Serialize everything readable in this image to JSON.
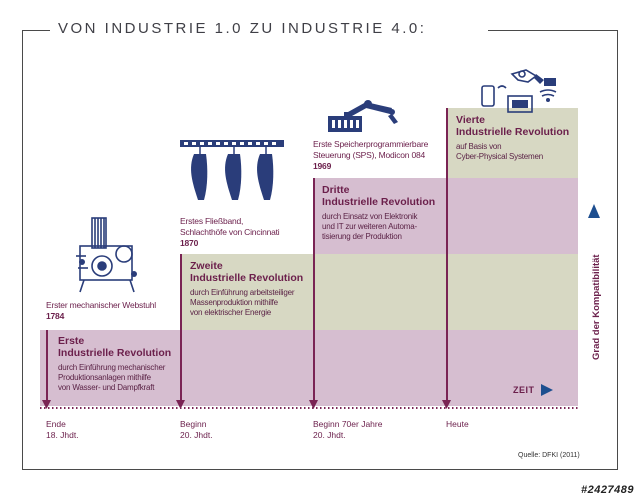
{
  "title": "VON INDUSTRIE 1.0 ZU INDUSTRIE 4.0:",
  "revolutions": [
    {
      "title_line1": "Erste",
      "title_line2": "Industrielle Revolution",
      "desc": [
        "durch Einführung mechanischer",
        "Produktionsanlagen mithilfe",
        "von Wasser- und Dampfkraft"
      ],
      "milestone": [
        "Erster mechanischer Webstuhl"
      ],
      "year": "1784",
      "tick": [
        "Ende",
        "18. Jhdt."
      ],
      "icon": "loom-icon"
    },
    {
      "title_line1": "Zweite",
      "title_line2": "Industrielle Revolution",
      "desc": [
        "durch Einführung arbeitsteiliger",
        "Massenproduktion mithilfe",
        "von elektrischer Energie"
      ],
      "milestone": [
        "Erstes Fließband,",
        "Schlachthöfe von Cincinnati"
      ],
      "year": "1870",
      "tick": [
        "Beginn",
        "20. Jhdt."
      ],
      "icon": "assembly-line-icon"
    },
    {
      "title_line1": "Dritte",
      "title_line2": "Industrielle Revolution",
      "desc": [
        "durch Einsatz von Elektronik",
        "und IT zur weiteren Automa-",
        "tisierung der Produktion"
      ],
      "milestone": [
        "Erste Speicherprogrammierbare",
        "Steuerung (SPS), Modicon 084"
      ],
      "year": "1969",
      "tick": [
        "Beginn 70er Jahre",
        "20. Jhdt."
      ],
      "icon": "robot-arm-icon"
    },
    {
      "title_line1": "Vierte",
      "title_line2": "Industrielle Revolution",
      "desc": [
        "auf Basis von",
        "Cyber-Physical Systemen"
      ],
      "milestone": [],
      "year": "",
      "tick": [
        "Heute"
      ],
      "icon": "connected-devices-icon"
    }
  ],
  "axis": {
    "x_label": "ZEIT",
    "y_label": "Grad der Kompatibilität"
  },
  "source": "Quelle: DFKI (2011)",
  "stock_id": "#2427489",
  "colors": {
    "band_purple": "#d6bed0",
    "band_green": "#d7d8c3",
    "accent": "#7a2454"
  }
}
